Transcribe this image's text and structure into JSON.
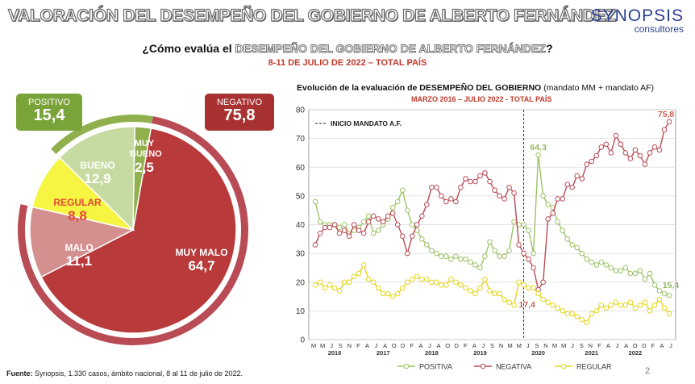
{
  "header": {
    "title": "VALORACIÓN DEL DESEMPEÑO DEL GOBIERNO DE ALBERTO FERNÁNDEZ",
    "logo_main": "SYNOPSIS",
    "logo_sub": "consultores"
  },
  "question": {
    "prefix": "¿Cómo evalúa el ",
    "highlight": "DESEMPEÑO DEL GOBIERNO DE ALBERTO FERNÁNDEZ",
    "suffix": "?",
    "date": "8-11 DE JULIO DE 2022 – TOTAL PAÍS"
  },
  "summary": {
    "positive_label": "POSITIVO",
    "positive_value": "15,4",
    "negative_label": "NEGATIVO",
    "negative_value": "75,8"
  },
  "colors": {
    "muy_malo": "#b83a3a",
    "malo": "#d48f8f",
    "regular": "#f5f542",
    "bueno": "#c6dba1",
    "muy_bueno": "#8fb04d",
    "positive_box": "#7aa33a",
    "negative_box": "#a83232",
    "positiva_line": "#9cc267",
    "negativa_line": "#b94b55",
    "regular_line": "#e6d51c"
  },
  "pie": {
    "slices": [
      {
        "label": "MUY MALO",
        "value": 64.7,
        "value_text": "64,7"
      },
      {
        "label": "MALO",
        "value": 11.1,
        "value_text": "11,1"
      },
      {
        "label": "REGULAR",
        "value": 8.8,
        "value_text": "8,8"
      },
      {
        "label": "BUENO",
        "value": 12.9,
        "value_text": "12,9"
      },
      {
        "label": "MUY BUENO",
        "value": 2.5,
        "value_text": "2,5"
      }
    ]
  },
  "chart": {
    "title_bold": "Evolución de la evaluación de DESEMPEÑO DEL GOBIERNO",
    "title_rest": " (mandato MM + mandato AF)",
    "subtitle": "MARZO 2016 – JULIO 2022 - TOTAL PAÍS",
    "annotation": "INICIO MANDATO A.F.",
    "label_positiva_peak": "64,3",
    "label_negativa_last": "75,8",
    "label_negativa_low": "17,4",
    "label_positiva_last": "15,4",
    "month_letters": [
      "M",
      "M",
      "J",
      "S",
      "N",
      "F",
      "A",
      "J",
      "A",
      "O",
      "D",
      "F",
      "A",
      "J",
      "A",
      "O",
      "D",
      "F",
      "A",
      "J",
      "S",
      "N",
      "M",
      "M",
      "J",
      "S",
      "N",
      "M",
      "M",
      "J",
      "S",
      "N",
      "F",
      "A",
      "J",
      "A",
      "O",
      "D",
      "F",
      "A",
      "J"
    ],
    "year_labels": [
      {
        "label": "2016",
        "at": 4
      },
      {
        "label": "2017",
        "at": 14
      },
      {
        "label": "2018",
        "at": 24
      },
      {
        "label": "2019",
        "at": 34
      },
      {
        "label": "2020",
        "at": 46
      },
      {
        "label": "2021",
        "at": 57
      },
      {
        "label": "2022",
        "at": 66
      }
    ],
    "legend": [
      "POSITIVA",
      "NEGATIVA",
      "REGULAR"
    ]
  },
  "footer": {
    "label": "Fuente:",
    "text": " Synopsis, 1.330 casos, ámbito nacional, 8 al 11 de julio de 2022."
  },
  "page_number": "2",
  "chart_data": {
    "type": "line",
    "ylim": [
      0,
      80
    ],
    "yticks": [
      0,
      10,
      20,
      30,
      40,
      50,
      60,
      70,
      80
    ],
    "series": [
      {
        "name": "POSITIVA",
        "values": [
          48,
          41,
          40,
          40,
          40,
          39,
          40,
          37,
          38,
          39,
          41,
          43,
          37,
          38,
          40,
          42,
          46,
          48,
          52,
          45,
          40,
          38,
          35,
          33,
          31,
          30,
          29,
          29,
          28,
          29,
          28,
          28,
          27,
          26,
          25,
          29,
          34,
          31,
          29,
          29,
          31,
          41,
          40,
          40,
          38,
          30,
          64.3,
          50,
          47,
          46,
          41,
          38,
          35,
          33,
          32,
          30,
          28,
          27,
          26,
          27,
          26,
          25,
          24,
          24,
          25,
          23,
          23,
          24,
          21,
          23,
          19,
          17,
          16,
          15.4
        ]
      },
      {
        "name": "NEGATIVA",
        "values": [
          33,
          37,
          39,
          39,
          40,
          37,
          38,
          36,
          40,
          38,
          37,
          41,
          43,
          42,
          41,
          43,
          44,
          40,
          36,
          30,
          36,
          40,
          43,
          47,
          53,
          53,
          50,
          48,
          49,
          48,
          53,
          56,
          55,
          55,
          57,
          58,
          55,
          52,
          50,
          49,
          53,
          51,
          33,
          30,
          28,
          25,
          17.4,
          20,
          42,
          44,
          49,
          49,
          54,
          53,
          57,
          56,
          61,
          62,
          64,
          67,
          68,
          65,
          71,
          68,
          65,
          63,
          66,
          64,
          61,
          65,
          67,
          66,
          73,
          75.8
        ]
      },
      {
        "name": "REGULAR",
        "values": [
          19,
          20,
          18,
          19,
          18,
          17,
          20,
          20,
          22,
          23,
          26,
          21,
          20,
          18,
          16,
          16,
          15,
          16,
          18,
          20,
          21,
          22,
          21,
          21,
          20,
          20,
          19,
          19,
          21,
          20,
          19,
          18,
          17,
          16,
          18,
          21,
          17,
          16,
          16,
          14,
          13,
          12,
          20,
          19,
          18,
          18,
          16,
          14,
          13,
          12,
          11,
          10,
          9,
          9,
          8,
          7,
          6,
          9,
          10,
          12,
          11,
          12,
          13,
          12,
          12,
          13,
          11,
          12,
          13,
          10,
          12,
          14,
          11,
          9
        ]
      }
    ],
    "annotation_x_index": 43
  }
}
